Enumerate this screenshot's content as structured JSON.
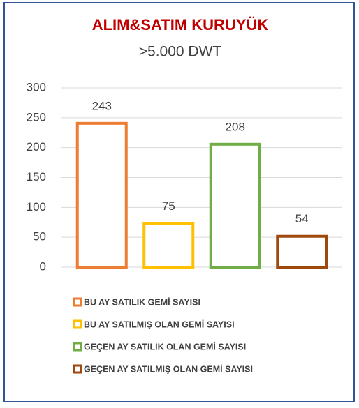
{
  "chart_data": {
    "type": "bar",
    "title": "ALIM&SATIM KURUYÜK",
    "subtitle": ">5.000 DWT",
    "series": [
      {
        "name": "BU AY SATILIK GEMİ SAYISI",
        "color": "#ED7D31",
        "values": [
          243
        ]
      },
      {
        "name": "BU AY SATILMIŞ OLAN GEMİ SAYISI",
        "color": "#FFC000",
        "values": [
          75
        ]
      },
      {
        "name": "GEÇEN AY SATILIK OLAN GEMİ SAYISI",
        "color": "#70AD47",
        "values": [
          208
        ]
      },
      {
        "name": "GEÇEN AY SATILMIŞ OLAN GEMİ SAYISI",
        "color": "#9E480E",
        "values": [
          54
        ]
      }
    ],
    "ylim": [
      0,
      300
    ],
    "yticks": [
      0,
      50,
      100,
      150,
      200,
      250,
      300
    ],
    "grid": true,
    "legend": "bottom"
  }
}
